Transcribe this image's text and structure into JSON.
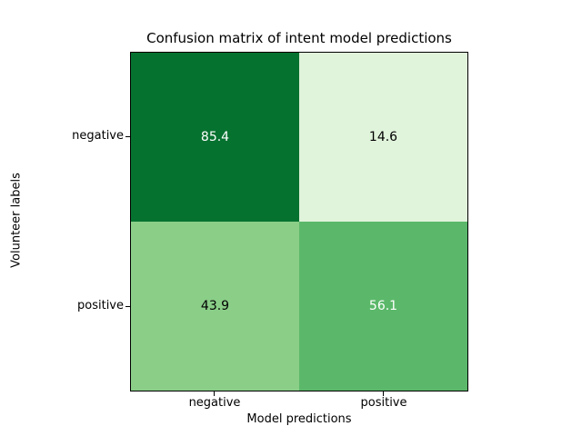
{
  "chart_data": {
    "type": "heatmap",
    "title": "Confusion matrix of intent model predictions",
    "xlabel": "Model predictions",
    "ylabel": "Volunteer labels",
    "x_categories": [
      "negative",
      "positive"
    ],
    "y_categories": [
      "negative",
      "positive"
    ],
    "values": [
      [
        85.4,
        14.6
      ],
      [
        43.9,
        56.1
      ]
    ],
    "colormap": "Greens",
    "value_range": [
      0,
      100
    ],
    "legend": "none",
    "grid": false,
    "cells": [
      {
        "row": "negative",
        "col": "negative",
        "value": "85.4",
        "bg": "#067230",
        "text_color": "#ffffff"
      },
      {
        "row": "negative",
        "col": "positive",
        "value": "14.6",
        "bg": "#e0f3db",
        "text_color": "#000000"
      },
      {
        "row": "positive",
        "col": "negative",
        "value": "43.9",
        "bg": "#8ace88",
        "text_color": "#000000"
      },
      {
        "row": "positive",
        "col": "positive",
        "value": "56.1",
        "bg": "#5bb86a",
        "text_color": "#ffffff"
      }
    ],
    "axis_color": "#000000",
    "background_color": "#ffffff"
  }
}
